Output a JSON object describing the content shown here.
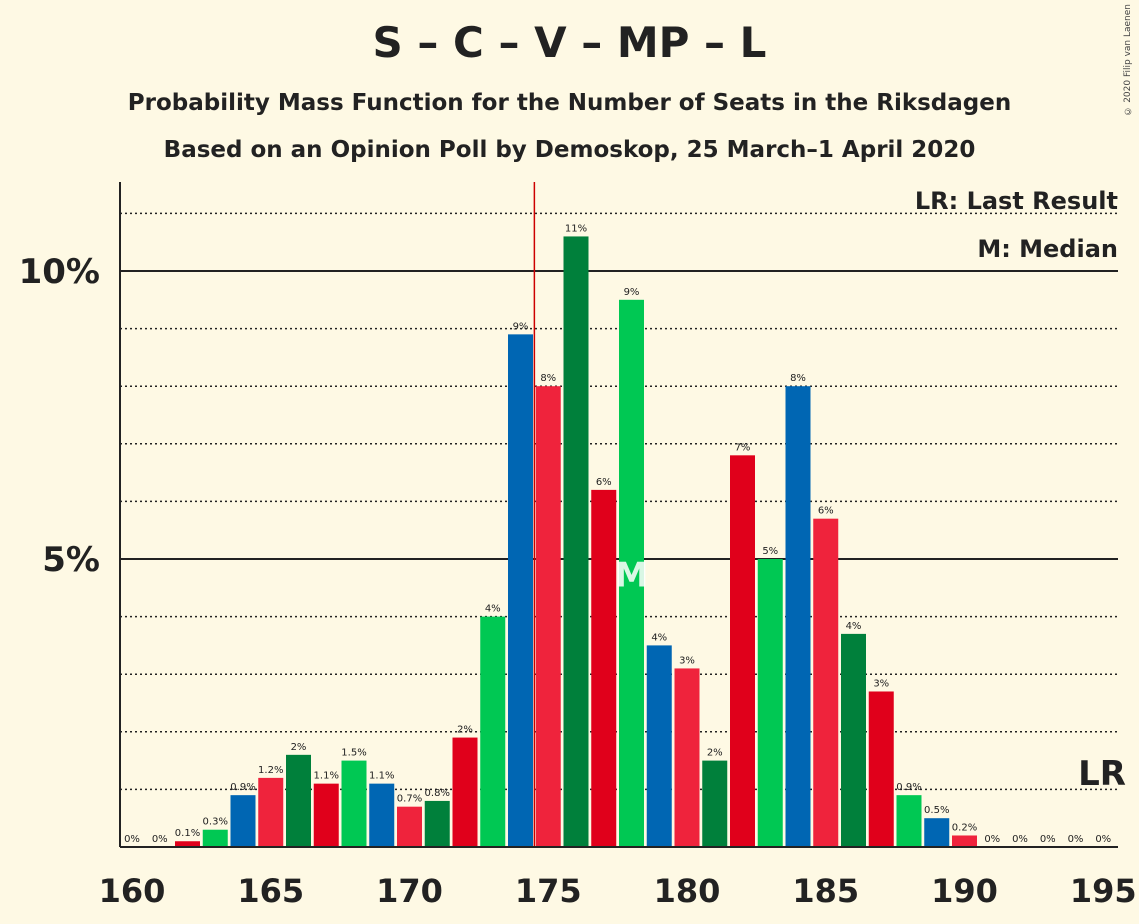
{
  "title": "S – C – V – MP – L",
  "subtitle1": "Probability Mass Function for the Number of Seats in the Riksdagen",
  "subtitle2": "Based on an Opinion Poll by Demoskop, 25 March–1 April 2020",
  "copyright": "© 2020 Filip van Laenen",
  "chart_data": {
    "type": "bar",
    "x": [
      160,
      161,
      162,
      163,
      164,
      165,
      166,
      167,
      168,
      169,
      170,
      171,
      172,
      173,
      174,
      175,
      176,
      177,
      178,
      179,
      180,
      181,
      182,
      183,
      184,
      185,
      186,
      187,
      188,
      189,
      190,
      191,
      192,
      193,
      194,
      195
    ],
    "values": [
      0,
      0,
      0.1,
      0.3,
      0.9,
      1.2,
      1.6,
      1.1,
      1.5,
      1.1,
      0.7,
      0.8,
      1.9,
      4.0,
      8.9,
      8.0,
      10.6,
      6.2,
      9.5,
      3.5,
      3.1,
      1.5,
      6.8,
      5.0,
      8.0,
      5.7,
      3.7,
      2.7,
      0.9,
      0.5,
      0.2,
      0,
      0,
      0,
      0,
      0
    ],
    "value_labels": [
      "0%",
      "0%",
      "0.1%",
      "0.3%",
      "0.9%",
      "1.2%",
      "2%",
      "1.1%",
      "1.5%",
      "1.1%",
      "0.7%",
      "0.8%",
      "2%",
      "4%",
      "9%",
      "8%",
      "11%",
      "6%",
      "9%",
      "4%",
      "3%",
      "2%",
      "7%",
      "5%",
      "8%",
      "6%",
      "4%",
      "3%",
      "0.9%",
      "0.5%",
      "0.2%",
      "0%",
      "0%",
      "0%",
      "0%",
      "0%"
    ],
    "bar_colors": [
      "#00b050",
      "#0066b3",
      "#e0001b",
      "#00c853",
      "#0066b3",
      "#ef233c",
      "#00803b",
      "#e0001b",
      "#00c853",
      "#0066b3",
      "#ef233c",
      "#00803b",
      "#e0001b",
      "#00c853",
      "#0066b3",
      "#ef233c",
      "#00803b",
      "#e0001b",
      "#00c853",
      "#0066b3",
      "#ef233c",
      "#00803b",
      "#e0001b",
      "#00c853",
      "#0066b3",
      "#ef233c",
      "#00803b",
      "#e0001b",
      "#00c853",
      "#0066b3",
      "#ef233c",
      "#00803b",
      "#e0001b",
      "#00c853",
      "#0066b3",
      "#ef233c"
    ],
    "xlim": [
      160,
      195
    ],
    "ylim": [
      0,
      11.5
    ],
    "x_ticks": [
      160,
      165,
      170,
      175,
      180,
      185,
      190,
      195
    ],
    "y_ticks": [
      {
        "value": 5,
        "label": "5%"
      },
      {
        "value": 10,
        "label": "10%"
      }
    ],
    "minor_grid_step": 1,
    "last_result": 175,
    "median": 178,
    "median_label": "M",
    "lr_label": "LR",
    "legend": [
      "LR: Last Result",
      "M: Median"
    ],
    "line_color": "#cc0000"
  }
}
